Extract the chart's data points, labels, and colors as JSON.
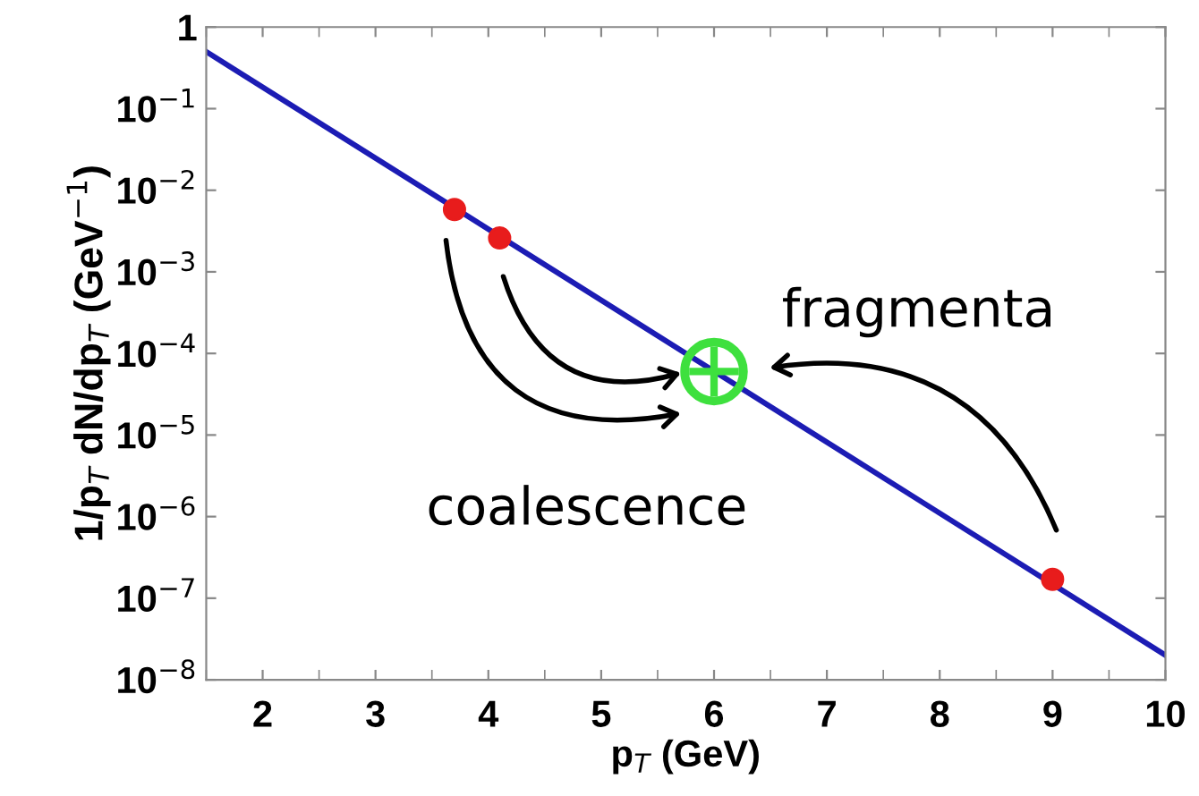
{
  "chart_data": {
    "type": "line",
    "xlabel": "p$_{T}$ (GeV)",
    "ylabel": "1/p$_{T}$ dN/dp$_{T}$ (GeV$^{−1}$)",
    "log": "y",
    "xlim": [
      1.5,
      10
    ],
    "xticks": [
      2,
      3,
      4,
      5,
      6,
      7,
      8,
      9,
      10
    ],
    "ylim": [
      1e-08,
      1
    ],
    "yticks": [
      {
        "value": 1e-08,
        "label": "10$^{−8}$"
      },
      {
        "value": 1e-07,
        "label": "10$^{−7}$"
      },
      {
        "value": 1e-06,
        "label": "10$^{−6}$"
      },
      {
        "value": 1e-05,
        "label": "10$^{−5}$"
      },
      {
        "value": 0.0001,
        "label": "10$^{−4}$"
      },
      {
        "value": 0.001,
        "label": "10$^{−3}$"
      },
      {
        "value": 0.01,
        "label": "10$^{−2}$"
      },
      {
        "value": 0.1,
        "label": "10$^{−1}$"
      },
      1
    ],
    "grid": false,
    "series": [
      {
        "color": "#1c1cb4",
        "x": [
          1.5,
          10
        ],
        "values": [
          0.5,
          2e-08
        ]
      },
      {
        "type": "scatter",
        "marker": "circle",
        "color": "#e81c1c",
        "x": [
          3.7,
          4.1,
          9
        ],
        "values": [
          0.0058,
          0.0026,
          1.7e-07
        ]
      },
      {
        "type": "scatter",
        "color": "#3ee03e",
        "x": [
          6
        ],
        "values": [
          6e-05
        ]
      }
    ],
    "annotations": [
      "coalescence",
      "fragmenta"
    ]
  }
}
